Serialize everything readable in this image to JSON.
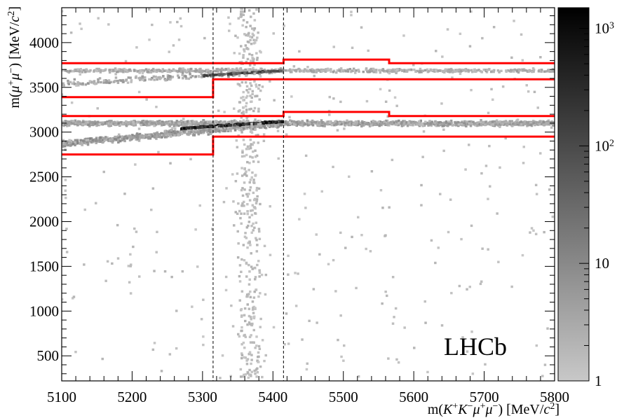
{
  "chart_data": {
    "type": "heatmap",
    "watermark": "LHCb",
    "xlabel_parts": [
      "m(",
      "K",
      "+",
      "K",
      "−",
      "μ",
      "+",
      "μ",
      "−",
      ") [MeV/",
      "c",
      "2",
      "]"
    ],
    "ylabel_parts": [
      "m(",
      "μ",
      "+",
      "μ",
      "−",
      ") [MeV/",
      "c",
      "2",
      "]"
    ],
    "xlim": [
      5100,
      5800
    ],
    "ylim": [
      220,
      4390
    ],
    "xticks": [
      5100,
      5200,
      5300,
      5400,
      5500,
      5600,
      5700,
      5800
    ],
    "yticks": [
      500,
      1000,
      1500,
      2000,
      2500,
      3000,
      3500,
      4000
    ],
    "colorbar": {
      "scale": "log",
      "range": [
        1,
        1500
      ],
      "tick_labels": [
        {
          "value": 1,
          "base": "1",
          "exp": ""
        },
        {
          "value": 10,
          "base": "10",
          "exp": ""
        },
        {
          "value": 100,
          "base": "10",
          "exp": "2"
        },
        {
          "value": 1000,
          "base": "10",
          "exp": "3"
        }
      ],
      "colors": [
        "#c8c8c8",
        "#000000"
      ]
    },
    "selection_lines": {
      "color": "#ff0000",
      "style": "solid",
      "psi2s_upper": [
        [
          5100,
          3770
        ],
        [
          5415,
          3770
        ],
        [
          5415,
          3810
        ],
        [
          5565,
          3810
        ],
        [
          5565,
          3770
        ],
        [
          5800,
          3770
        ]
      ],
      "psi2s_lower": [
        [
          5100,
          3390
        ],
        [
          5315,
          3390
        ],
        [
          5315,
          3590
        ],
        [
          5800,
          3590
        ]
      ],
      "jpsi_upper": [
        [
          5100,
          3180
        ],
        [
          5415,
          3180
        ],
        [
          5415,
          3225
        ],
        [
          5565,
          3225
        ],
        [
          5565,
          3180
        ],
        [
          5800,
          3180
        ]
      ],
      "jpsi_lower": [
        [
          5100,
          2750
        ],
        [
          5315,
          2750
        ],
        [
          5315,
          2950
        ],
        [
          5800,
          2950
        ]
      ]
    },
    "signal_window_lines": {
      "x": [
        5315,
        5415
      ],
      "style": "dashed",
      "color": "#000000"
    },
    "bands": [
      {
        "name": "J/psi",
        "y_center": 3097,
        "x_range": [
          5100,
          5800
        ],
        "density": "high"
      },
      {
        "name": "psi(2S)",
        "y_center": 3686,
        "x_range": [
          5100,
          5800
        ],
        "density": "medium"
      },
      {
        "name": "radiative tail J/psi",
        "y_from": 2850,
        "y_to": 3097,
        "x_range": [
          5100,
          5415
        ],
        "density": "medium"
      },
      {
        "name": "radiative tail psi(2S)",
        "y_from": 3500,
        "y_to": 3686,
        "x_range": [
          5100,
          5415
        ],
        "density": "low"
      },
      {
        "name": "B_s signal column",
        "x_center": 5367,
        "y_range": [
          250,
          4390
        ],
        "density": "low"
      }
    ]
  }
}
